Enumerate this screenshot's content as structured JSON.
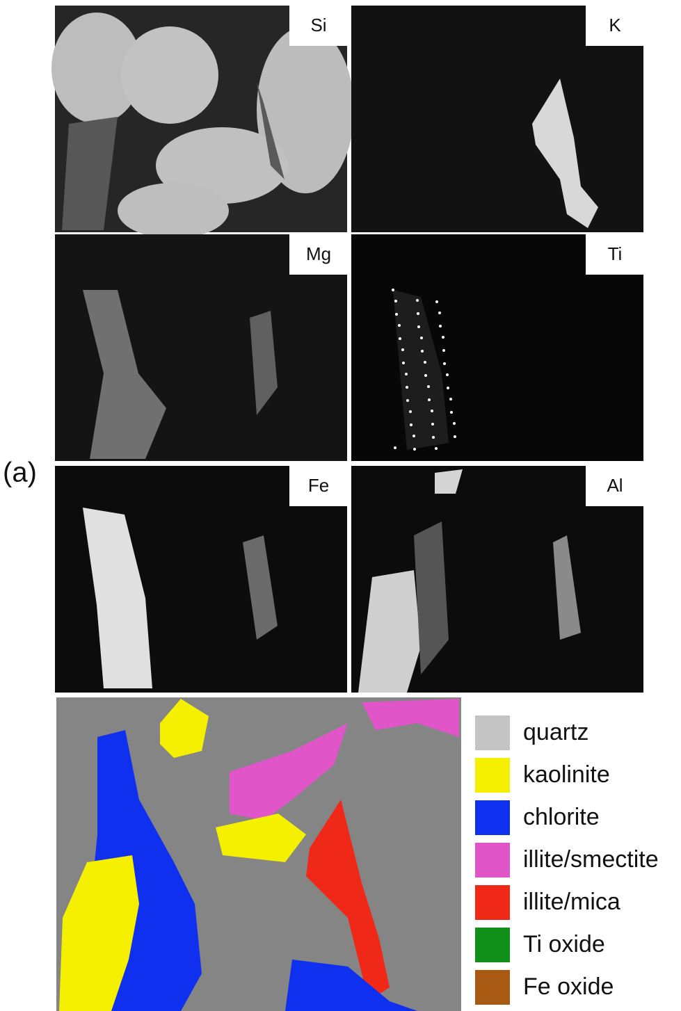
{
  "panel_label": "(a)",
  "maps": [
    {
      "element": "Si"
    },
    {
      "element": "K"
    },
    {
      "element": "Mg"
    },
    {
      "element": "Ti"
    },
    {
      "element": "Fe"
    },
    {
      "element": "Al"
    }
  ],
  "legend": [
    {
      "label": "quartz",
      "color": "#c4c4c4"
    },
    {
      "label": "kaolinite",
      "color": "#f5f000"
    },
    {
      "label": "chlorite",
      "color": "#1030f0"
    },
    {
      "label": "illite/smectite",
      "color": "#e055c8"
    },
    {
      "label": "illite/mica",
      "color": "#f02818"
    },
    {
      "label": "Ti oxide",
      "color": "#119019"
    },
    {
      "label": "Fe oxide",
      "color": "#a85a12"
    }
  ]
}
